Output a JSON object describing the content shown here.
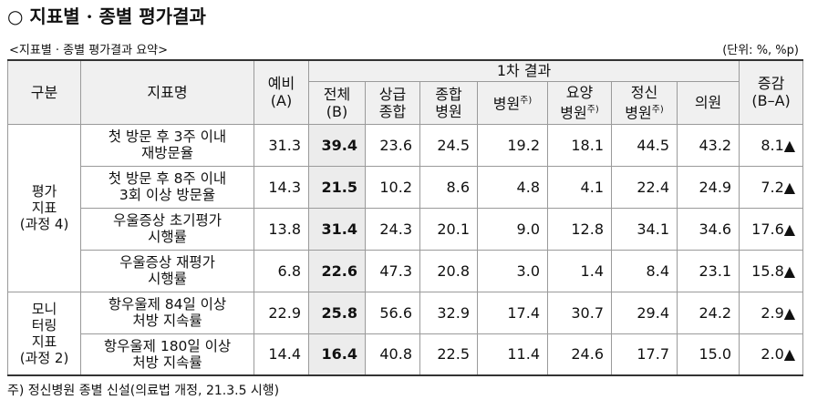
{
  "header": {
    "title": "○ 지표별 · 종별 평가결과",
    "caption": "<지표별 · 종별 평가결과 요약>",
    "unit": "(단위: %, %p)"
  },
  "table": {
    "columns": {
      "group": "구분",
      "indicator": "지표명",
      "prelim": "예비\n(A)",
      "first_result": "1차 결과",
      "total": "전체\n(B)",
      "tertiary": "상급\n종합",
      "general": "종합\n병원",
      "hospital": {
        "text": "병원",
        "note": "주)"
      },
      "nursing": {
        "text": "요양\n병원",
        "note": "주)"
      },
      "mental": {
        "text": "정신\n병원",
        "note": "주)"
      },
      "clinic": "의원",
      "change": "증감\n(B–A)"
    },
    "groups": [
      {
        "label": "평가\n지표\n(과정 4)",
        "rows": [
          {
            "indicator": "첫 방문 후 3주 이내\n재방문율",
            "values": [
              "31.3",
              "39.4",
              "23.6",
              "24.5",
              "19.2",
              "18.1",
              "44.5",
              "43.2",
              "8.1▲"
            ]
          },
          {
            "indicator": "첫 방문 후 8주 이내\n3회 이상 방문율",
            "values": [
              "14.3",
              "21.5",
              "10.2",
              "8.6",
              "4.8",
              "4.1",
              "22.4",
              "24.9",
              "7.2▲"
            ]
          },
          {
            "indicator": "우울증상 초기평가\n시행률",
            "values": [
              "13.8",
              "31.4",
              "24.3",
              "20.1",
              "9.0",
              "12.8",
              "34.1",
              "34.6",
              "17.6▲"
            ]
          },
          {
            "indicator": "우울증상 재평가\n시행률",
            "values": [
              "6.8",
              "22.6",
              "47.3",
              "20.8",
              "3.0",
              "1.4",
              "8.4",
              "23.1",
              "15.8▲"
            ]
          }
        ]
      },
      {
        "label": "모니\n터링\n지표\n(과정 2)",
        "rows": [
          {
            "indicator": "항우울제 84일 이상\n처방 지속률",
            "values": [
              "22.9",
              "25.8",
              "56.6",
              "32.9",
              "17.4",
              "30.7",
              "29.4",
              "24.2",
              "2.9▲"
            ]
          },
          {
            "indicator": "항우울제 180일 이상\n처방 지속률",
            "values": [
              "14.4",
              "16.4",
              "40.8",
              "22.5",
              "11.4",
              "24.6",
              "17.7",
              "15.0",
              "2.0▲"
            ]
          }
        ]
      }
    ]
  },
  "footnote": "주) 정신병원 종별 신설(의료법 개정, 21.3.5 시행)"
}
